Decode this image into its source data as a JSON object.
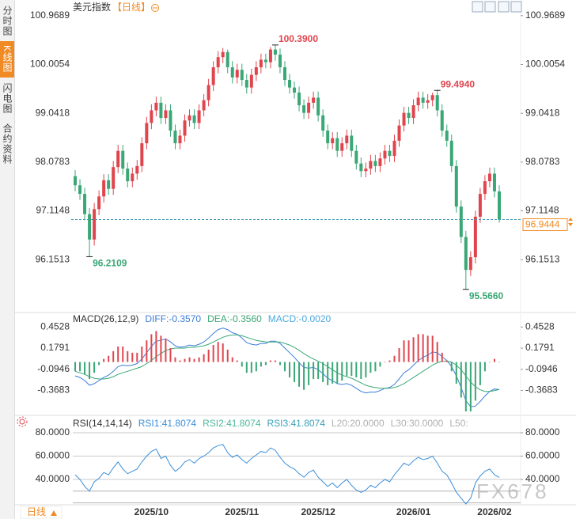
{
  "ui": {
    "tabs": [
      "分时图",
      "K线图",
      "闪电图",
      "合约资料"
    ],
    "active_tab": 1,
    "period": "日线",
    "watermark": "FX678"
  },
  "chart_data": [
    {
      "type": "candlestick",
      "title": "美元指数",
      "subtitle": "【日线】",
      "categories": [
        null,
        null,
        null,
        null,
        null,
        null,
        null,
        null,
        null,
        null,
        null,
        null,
        null,
        null,
        null,
        null,
        "2025/10",
        null,
        null,
        null,
        null,
        null,
        null,
        null,
        null,
        null,
        null,
        null,
        null,
        null,
        null,
        null,
        null,
        null,
        null,
        "2025/11",
        null,
        null,
        null,
        null,
        null,
        null,
        null,
        null,
        null,
        null,
        null,
        null,
        null,
        null,
        null,
        "2025/12",
        null,
        null,
        null,
        null,
        null,
        null,
        null,
        null,
        null,
        null,
        null,
        null,
        null,
        null,
        null,
        null,
        null,
        null,
        null,
        "2026/01",
        null,
        null,
        null,
        null,
        null,
        null,
        null,
        null,
        null,
        null,
        null,
        null,
        null,
        null,
        null,
        null,
        "2026/02",
        null
      ],
      "open": [
        97.8,
        97.62,
        97.45,
        97.05,
        96.55,
        97.15,
        97.4,
        97.72,
        97.55,
        97.98,
        98.3,
        97.95,
        97.7,
        97.85,
        98.0,
        98.45,
        98.85,
        99.1,
        99.25,
        98.95,
        99.1,
        98.7,
        98.45,
        98.6,
        98.9,
        99.0,
        98.85,
        99.1,
        99.3,
        99.6,
        99.95,
        100.15,
        100.25,
        99.95,
        99.75,
        99.9,
        99.7,
        99.55,
        99.8,
        99.95,
        100.1,
        100.05,
        100.3,
        100.2,
        99.95,
        99.7,
        99.55,
        99.45,
        99.2,
        99.05,
        99.25,
        99.35,
        99.0,
        98.7,
        98.45,
        98.55,
        98.3,
        98.45,
        98.6,
        98.3,
        98.05,
        97.9,
        97.95,
        98.1,
        98.0,
        98.15,
        98.3,
        98.2,
        98.5,
        98.8,
        99.05,
        98.95,
        99.2,
        99.35,
        99.25,
        99.3,
        99.4,
        99.1,
        98.7,
        98.5,
        98.0,
        97.2,
        96.6,
        95.95,
        96.2,
        97.0,
        97.45,
        97.7,
        97.85,
        97.5
      ],
      "high": [
        97.92,
        97.74,
        97.57,
        97.17,
        97.27,
        97.52,
        97.84,
        97.84,
        98.1,
        98.42,
        98.42,
        98.07,
        97.97,
        98.12,
        98.57,
        98.97,
        99.22,
        99.37,
        99.37,
        99.22,
        99.22,
        98.82,
        98.72,
        99.02,
        99.12,
        99.12,
        99.22,
        99.42,
        99.72,
        100.07,
        100.27,
        100.33,
        100.3,
        100.07,
        100.02,
        100.02,
        99.82,
        99.92,
        100.07,
        100.22,
        100.22,
        100.35,
        100.39,
        100.32,
        100.07,
        99.82,
        99.67,
        99.57,
        99.32,
        99.37,
        99.47,
        99.47,
        99.12,
        98.82,
        98.67,
        98.67,
        98.57,
        98.72,
        98.72,
        98.42,
        98.17,
        98.07,
        98.22,
        98.22,
        98.27,
        98.42,
        98.42,
        98.62,
        98.92,
        99.17,
        99.17,
        99.32,
        99.47,
        99.47,
        99.42,
        99.45,
        99.494,
        99.22,
        98.82,
        98.62,
        98.12,
        97.32,
        96.72,
        96.32,
        97.12,
        97.57,
        97.82,
        97.97,
        97.97,
        97.62
      ],
      "low": [
        97.5,
        97.33,
        96.93,
        96.2109,
        96.43,
        97.03,
        97.28,
        97.43,
        97.43,
        97.86,
        97.83,
        97.58,
        97.58,
        97.73,
        97.88,
        98.33,
        98.73,
        98.98,
        98.83,
        98.83,
        98.58,
        98.33,
        98.33,
        98.48,
        98.78,
        98.73,
        98.73,
        98.98,
        99.18,
        99.48,
        99.83,
        100.03,
        99.83,
        99.63,
        99.63,
        99.58,
        99.43,
        99.43,
        99.68,
        99.83,
        99.93,
        99.93,
        100.08,
        99.83,
        99.58,
        99.43,
        99.33,
        99.08,
        98.93,
        98.93,
        99.13,
        98.88,
        98.58,
        98.33,
        98.33,
        98.18,
        98.18,
        98.33,
        98.18,
        97.93,
        97.78,
        97.78,
        97.83,
        97.88,
        97.88,
        98.03,
        98.08,
        98.08,
        98.38,
        98.68,
        98.83,
        98.83,
        99.08,
        99.13,
        99.13,
        99.18,
        98.98,
        98.58,
        98.38,
        97.88,
        97.08,
        96.48,
        95.566,
        95.83,
        96.08,
        96.88,
        97.33,
        97.58,
        97.38,
        96.88
      ],
      "close": [
        97.62,
        97.45,
        97.05,
        96.55,
        97.15,
        97.4,
        97.72,
        97.55,
        97.98,
        98.3,
        97.95,
        97.7,
        97.85,
        98.0,
        98.45,
        98.85,
        99.1,
        99.25,
        98.95,
        99.1,
        98.7,
        98.45,
        98.6,
        98.9,
        99.0,
        98.85,
        99.1,
        99.3,
        99.6,
        99.95,
        100.15,
        100.25,
        99.95,
        99.75,
        99.9,
        99.7,
        99.55,
        99.8,
        99.95,
        100.1,
        100.05,
        100.3,
        100.2,
        99.95,
        99.7,
        99.55,
        99.45,
        99.2,
        99.05,
        99.25,
        99.35,
        99.0,
        98.7,
        98.45,
        98.55,
        98.3,
        98.45,
        98.6,
        98.3,
        98.05,
        97.9,
        97.95,
        98.1,
        98.0,
        98.15,
        98.3,
        98.2,
        98.5,
        98.8,
        99.05,
        98.95,
        99.2,
        99.35,
        99.25,
        99.3,
        99.4,
        99.1,
        98.7,
        98.5,
        98.0,
        97.2,
        96.6,
        95.95,
        96.2,
        97.0,
        97.45,
        97.7,
        97.85,
        97.5,
        96.9444
      ],
      "up_color": "#e0454e",
      "down_color": "#3aa776",
      "title_color": "#333333",
      "subtitle_color": "#f08a24",
      "annotations": [
        {
          "value": 100.39,
          "label": "100.3900",
          "color": "#e0454e"
        },
        {
          "value": 99.494,
          "label": "99.4940",
          "color": "#e0454e"
        },
        {
          "value": 96.2109,
          "label": "96.2109",
          "color": "#3aa776"
        },
        {
          "value": 95.566,
          "label": "95.5660",
          "color": "#3aa776"
        }
      ],
      "last_price": 96.9444,
      "last_line_color": "#3a9bb0",
      "last_label_color": "#f08a24",
      "ylim": [
        95.14,
        101.2
      ],
      "yticks": [
        100.9689,
        100.0054,
        99.0418,
        98.0783,
        97.1148,
        96.1513
      ],
      "grid": false
    },
    {
      "type": "combo",
      "title": "MACD(26,12,9)",
      "title_color": "#333333",
      "series": [
        {
          "name": "DIFF:-0.3570",
          "type": "line",
          "color": "#3b7dd8",
          "values": [
            -0.18,
            -0.2,
            -0.24,
            -0.3,
            -0.28,
            -0.24,
            -0.2,
            -0.17,
            -0.12,
            -0.06,
            -0.04,
            -0.05,
            -0.04,
            -0.02,
            0.04,
            0.12,
            0.2,
            0.27,
            0.28,
            0.3,
            0.26,
            0.21,
            0.19,
            0.2,
            0.22,
            0.21,
            0.23,
            0.26,
            0.31,
            0.37,
            0.42,
            0.44,
            0.42,
            0.38,
            0.36,
            0.31,
            0.25,
            0.23,
            0.22,
            0.24,
            0.24,
            0.27,
            0.27,
            0.24,
            0.18,
            0.12,
            0.06,
            -0.01,
            -0.07,
            -0.08,
            -0.07,
            -0.1,
            -0.15,
            -0.21,
            -0.24,
            -0.28,
            -0.29,
            -0.28,
            -0.3,
            -0.34,
            -0.38,
            -0.4,
            -0.39,
            -0.39,
            -0.37,
            -0.34,
            -0.33,
            -0.29,
            -0.22,
            -0.14,
            -0.1,
            -0.04,
            0.02,
            0.06,
            0.09,
            0.13,
            0.12,
            0.07,
            0.02,
            -0.06,
            -0.18,
            -0.33,
            -0.5,
            -0.58,
            -0.57,
            -0.51,
            -0.44,
            -0.38,
            -0.35,
            -0.357
          ]
        },
        {
          "name": "DEA:-0.3560",
          "type": "line",
          "color": "#3aa776",
          "values": [
            -0.12,
            -0.14,
            -0.16,
            -0.19,
            -0.21,
            -0.22,
            -0.22,
            -0.21,
            -0.19,
            -0.16,
            -0.14,
            -0.12,
            -0.1,
            -0.08,
            -0.06,
            -0.02,
            0.02,
            0.07,
            0.11,
            0.15,
            0.17,
            0.18,
            0.18,
            0.18,
            0.19,
            0.19,
            0.2,
            0.21,
            0.23,
            0.26,
            0.29,
            0.32,
            0.34,
            0.35,
            0.35,
            0.34,
            0.32,
            0.3,
            0.28,
            0.27,
            0.26,
            0.26,
            0.26,
            0.26,
            0.24,
            0.22,
            0.19,
            0.15,
            0.11,
            0.07,
            0.04,
            0.01,
            -0.02,
            -0.06,
            -0.1,
            -0.14,
            -0.17,
            -0.19,
            -0.21,
            -0.24,
            -0.27,
            -0.3,
            -0.32,
            -0.33,
            -0.34,
            -0.34,
            -0.34,
            -0.33,
            -0.31,
            -0.28,
            -0.24,
            -0.2,
            -0.16,
            -0.12,
            -0.08,
            -0.04,
            -0.01,
            0.01,
            0.01,
            0.0,
            -0.04,
            -0.1,
            -0.18,
            -0.26,
            -0.32,
            -0.36,
            -0.38,
            -0.38,
            -0.37,
            -0.356
          ]
        },
        {
          "name": "MACD:-0.0020",
          "type": "bar",
          "color": "#4aa8e0",
          "values": [
            -0.12,
            -0.12,
            -0.16,
            -0.22,
            -0.14,
            -0.04,
            0.04,
            0.08,
            0.14,
            0.2,
            0.2,
            0.14,
            0.12,
            0.12,
            0.2,
            0.28,
            0.36,
            0.4,
            0.34,
            0.3,
            0.18,
            0.06,
            0.02,
            0.04,
            0.06,
            0.04,
            0.06,
            0.1,
            0.16,
            0.22,
            0.26,
            0.24,
            0.16,
            0.06,
            0.02,
            -0.06,
            -0.14,
            -0.14,
            -0.12,
            -0.06,
            -0.04,
            0.02,
            0.02,
            -0.04,
            -0.12,
            -0.2,
            -0.26,
            -0.32,
            -0.36,
            -0.3,
            -0.22,
            -0.22,
            -0.26,
            -0.3,
            -0.28,
            -0.28,
            -0.24,
            -0.18,
            -0.18,
            -0.2,
            -0.22,
            -0.2,
            -0.14,
            -0.12,
            -0.06,
            0.0,
            0.02,
            0.08,
            0.18,
            0.28,
            0.28,
            0.32,
            0.36,
            0.36,
            0.34,
            0.34,
            0.26,
            0.12,
            0.02,
            -0.12,
            -0.28,
            -0.46,
            -0.64,
            -0.64,
            -0.5,
            -0.3,
            -0.12,
            0.0,
            0.04,
            -0.002
          ]
        }
      ],
      "up_color": "#e0454e",
      "down_color": "#3aa776",
      "ylim": [
        -0.66,
        0.61
      ],
      "yticks": [
        0.4528,
        0.1791,
        -0.0946,
        -0.3683
      ],
      "grid": false
    },
    {
      "type": "line",
      "title": "RSI(14,14,14)",
      "title_color": "#333333",
      "series": [
        {
          "name": "RSI1:41.8074",
          "color": "#3b8fd9",
          "values": [
            44,
            40,
            34,
            30,
            38,
            41,
            46,
            44,
            50,
            55,
            49,
            45,
            47,
            49,
            55,
            60,
            64,
            66,
            58,
            60,
            52,
            47,
            50,
            55,
            57,
            54,
            58,
            60,
            63,
            67,
            69,
            70,
            63,
            59,
            61,
            57,
            54,
            58,
            61,
            64,
            63,
            67,
            65,
            59,
            54,
            51,
            49,
            45,
            42,
            46,
            48,
            42,
            38,
            34,
            37,
            33,
            37,
            40,
            35,
            31,
            29,
            31,
            35,
            33,
            37,
            40,
            38,
            44,
            49,
            54,
            52,
            56,
            59,
            57,
            58,
            60,
            54,
            47,
            44,
            37,
            29,
            24,
            19,
            24,
            37,
            43,
            47,
            49,
            44,
            41.8074
          ]
        },
        {
          "name": "RSI2:41.8074",
          "color": "#4cb89a"
        },
        {
          "name": "RSI3:41.8074",
          "color": "#3aa0b8"
        }
      ],
      "levels": [
        {
          "name": "L20:20.0000",
          "value": 20
        },
        {
          "name": "L30:30.0000",
          "value": 30
        },
        {
          "name": "L50:"
        }
      ],
      "level_color": "#b0b0b0",
      "ylim": [
        17,
        91.5
      ],
      "yticks": [
        {
          "value": 80,
          "label": "80.0000"
        },
        {
          "value": 60,
          "label": "60.0000"
        },
        {
          "value": 40,
          "label": "40.0000"
        }
      ],
      "grid": true
    }
  ]
}
